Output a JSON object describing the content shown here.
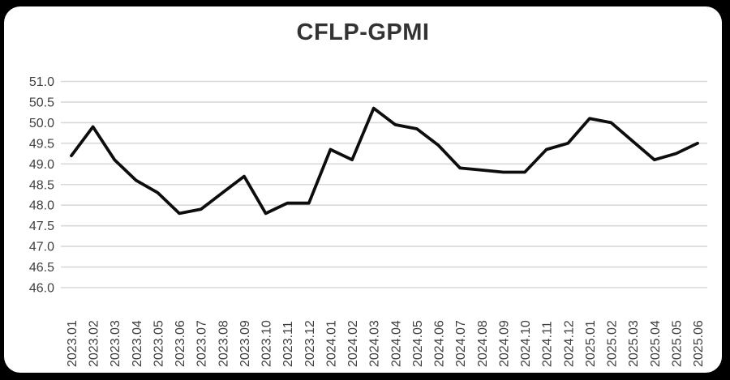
{
  "frame": {
    "background_color": "#000000",
    "card_color": "#ffffff"
  },
  "chart_data": {
    "type": "line",
    "title": "CFLP-GPMI",
    "xlabel": "",
    "ylabel": "",
    "legend": "none",
    "grid": true,
    "ylim": [
      46.0,
      51.0
    ],
    "ytick_step": 0.5,
    "ytick_labels": [
      "51.0",
      "50.5",
      "50.0",
      "49.5",
      "49.0",
      "48.5",
      "48.0",
      "47.5",
      "47.0",
      "46.5",
      "46.0"
    ],
    "categories": [
      "2023.01",
      "2023.02",
      "2023.03",
      "2023.04",
      "2023.05",
      "2023.06",
      "2023.07",
      "2023.08",
      "2023.09",
      "2023.10",
      "2023.11",
      "2023.12",
      "2024.01",
      "2024.02",
      "2024.03",
      "2024.04",
      "2024.05",
      "2024.06",
      "2024.07",
      "2024.08",
      "2024.09",
      "2024.10",
      "2024.11",
      "2024.12",
      "2025.01",
      "2025.02",
      "2025.03",
      "2025.04",
      "2025.05",
      "2025.06"
    ],
    "series": [
      {
        "name": "CFLP-GPMI",
        "values": [
          49.2,
          49.9,
          49.1,
          48.6,
          48.3,
          47.8,
          47.9,
          48.3,
          48.7,
          47.8,
          48.05,
          48.05,
          49.35,
          49.1,
          50.35,
          49.95,
          49.85,
          49.45,
          48.9,
          48.85,
          48.8,
          48.8,
          49.35,
          49.5,
          50.1,
          50.0,
          49.55,
          49.1,
          49.25,
          49.5
        ]
      }
    ],
    "colors": {
      "line": "#0d0d0d",
      "grid": "#d9d9d9",
      "tick_label": "#3f3f3f",
      "title": "#333333"
    }
  }
}
